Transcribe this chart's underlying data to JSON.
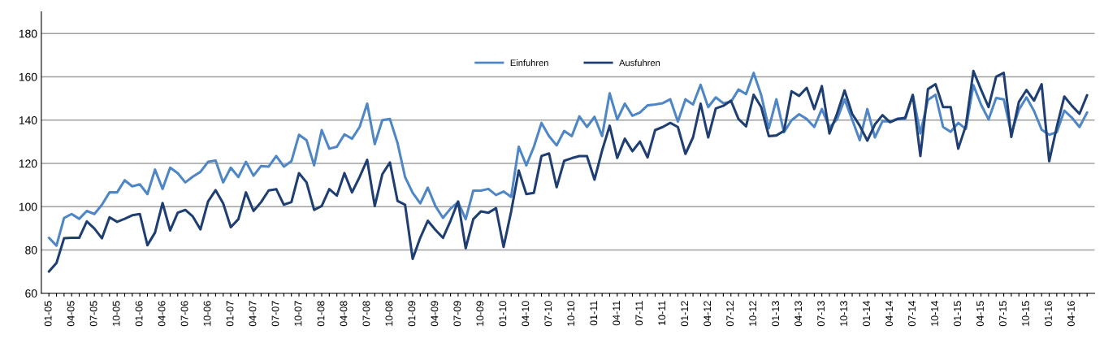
{
  "chart_data": {
    "type": "line",
    "categories": [
      "01-05",
      null,
      null,
      "04-05",
      null,
      null,
      "07-05",
      null,
      null,
      "10-05",
      null,
      null,
      "01-06",
      null,
      null,
      "04-06",
      null,
      null,
      "07-06",
      null,
      null,
      "10-06",
      null,
      null,
      "01-07",
      null,
      null,
      "04-07",
      null,
      null,
      "07-07",
      null,
      null,
      "10-07",
      null,
      null,
      "01-08",
      null,
      null,
      "04-08",
      null,
      null,
      "07-08",
      null,
      null,
      "10-08",
      null,
      null,
      "01-09",
      null,
      null,
      "04-09",
      null,
      null,
      "07-09",
      null,
      null,
      "10-09",
      null,
      null,
      "01-10",
      null,
      null,
      "04-10",
      null,
      null,
      "07-10",
      null,
      null,
      "10-10",
      null,
      null,
      "01-11",
      null,
      null,
      "04-11",
      null,
      null,
      "07-11",
      null,
      null,
      "10-11",
      null,
      null,
      "01-12",
      null,
      null,
      "04-12",
      null,
      null,
      "07-12",
      null,
      null,
      "10-12",
      null,
      null,
      "01-13",
      null,
      null,
      "04-13",
      null,
      null,
      "07-13",
      null,
      null,
      "10-13",
      null,
      null,
      "01-14",
      null,
      null,
      "04-14",
      null,
      null,
      "07-14",
      null,
      null,
      "10-14",
      null,
      null,
      "01-15",
      null,
      null,
      "04-15",
      null,
      null,
      "07-15",
      null,
      null,
      "10-15",
      null,
      null,
      "01-16",
      null,
      null,
      "04-16",
      null,
      null
    ],
    "series": [
      {
        "name": "Einfuhren",
        "color": "#4f86c6",
        "values": [
          85.6,
          82,
          94.8,
          96.6,
          94.4,
          98,
          96.6,
          100.9,
          106.6,
          106.6,
          112.2,
          109.4,
          110.3,
          105.8,
          117.1,
          108.2,
          118,
          115.5,
          111.2,
          113.9,
          116.1,
          120.7,
          121.3,
          111.2,
          118,
          113.7,
          120.7,
          114.3,
          118.8,
          118.5,
          123.4,
          118.5,
          121,
          133.2,
          130.7,
          119.1,
          135.4,
          126.8,
          127.7,
          133.4,
          131.4,
          136.8,
          147.6,
          128.9,
          140,
          140.5,
          129.5,
          113.7,
          106.4,
          101.5,
          108.8,
          100.3,
          94.8,
          99.1,
          102.1,
          94.2,
          107.4,
          107.4,
          108.2,
          105.4,
          107,
          104.5,
          127.7,
          119.1,
          127.7,
          138.7,
          132.6,
          128.3,
          135,
          132.6,
          141.7,
          136.8,
          141.5,
          132.6,
          152.4,
          140.3,
          147.6,
          142,
          143.5,
          146.8,
          147.2,
          147.8,
          149.6,
          139.3,
          149.6,
          147.2,
          156.3,
          146,
          150.5,
          147.8,
          148.4,
          154.1,
          152,
          161.8,
          151.5,
          136.2,
          149.6,
          134.4,
          139.9,
          142.7,
          140.5,
          136.8,
          145.1,
          136.6,
          140.3,
          149.6,
          140.3,
          130.7,
          145.1,
          132,
          139.5,
          139.3,
          140.7,
          140.5,
          151.7,
          133.8,
          149.3,
          151.7,
          136.8,
          134.6,
          138.7,
          135.9,
          156.1,
          147.2,
          140.3,
          150.2,
          149.6,
          133.8,
          144.8,
          150.5,
          144.2,
          135.6,
          133.2,
          134.4,
          144.4,
          141.1,
          136.8,
          143.5
        ]
      },
      {
        "name": "Ausfuhren",
        "color": "#1f3f73",
        "values": [
          70,
          74,
          85.4,
          85.6,
          85.6,
          93.2,
          89.9,
          85.4,
          95.1,
          93,
          94.4,
          96,
          96.6,
          82.2,
          88,
          101.7,
          89,
          97.2,
          98.5,
          95.4,
          89.5,
          102.4,
          107.6,
          101.5,
          90.5,
          94.2,
          106.6,
          98,
          102.1,
          107.5,
          108.1,
          100.9,
          102.1,
          115.5,
          111.2,
          98.5,
          100.3,
          108.1,
          105.1,
          115.5,
          106.6,
          113.7,
          121.6,
          100.3,
          115,
          120.4,
          102.7,
          100.9,
          75.9,
          85.6,
          93.5,
          89.3,
          85.6,
          93.5,
          102.4,
          80.8,
          94.2,
          97.8,
          97.2,
          99.3,
          81.4,
          97.8,
          116.7,
          105.8,
          106.4,
          123.4,
          124.6,
          109,
          121.2,
          122.4,
          123.4,
          123.4,
          112.5,
          125.9,
          137.4,
          122.5,
          131.4,
          125.6,
          130.1,
          122.8,
          135.4,
          136.8,
          138.7,
          136.8,
          124.4,
          132,
          147.6,
          132,
          145.4,
          146.6,
          149,
          140.5,
          137.1,
          151.7,
          146,
          132.6,
          132.9,
          135,
          153.3,
          151.2,
          154.9,
          145.1,
          155.7,
          133.8,
          142.9,
          153.7,
          142.9,
          137.4,
          130.5,
          138,
          142.3,
          139,
          140.5,
          141.1,
          151.5,
          123.4,
          154.3,
          156.6,
          146,
          146,
          126.8,
          137.4,
          162.7,
          154.1,
          146,
          160,
          161.8,
          132.2,
          148.4,
          153.9,
          149,
          156.6,
          121,
          136.8,
          150.9,
          146.6,
          142.9,
          151.5
        ]
      }
    ],
    "ylim": [
      60,
      190
    ],
    "yticks": [
      60,
      80,
      100,
      120,
      140,
      160,
      180
    ],
    "grid": "y",
    "legend": "top",
    "line_style": "solid",
    "marker": "none"
  }
}
